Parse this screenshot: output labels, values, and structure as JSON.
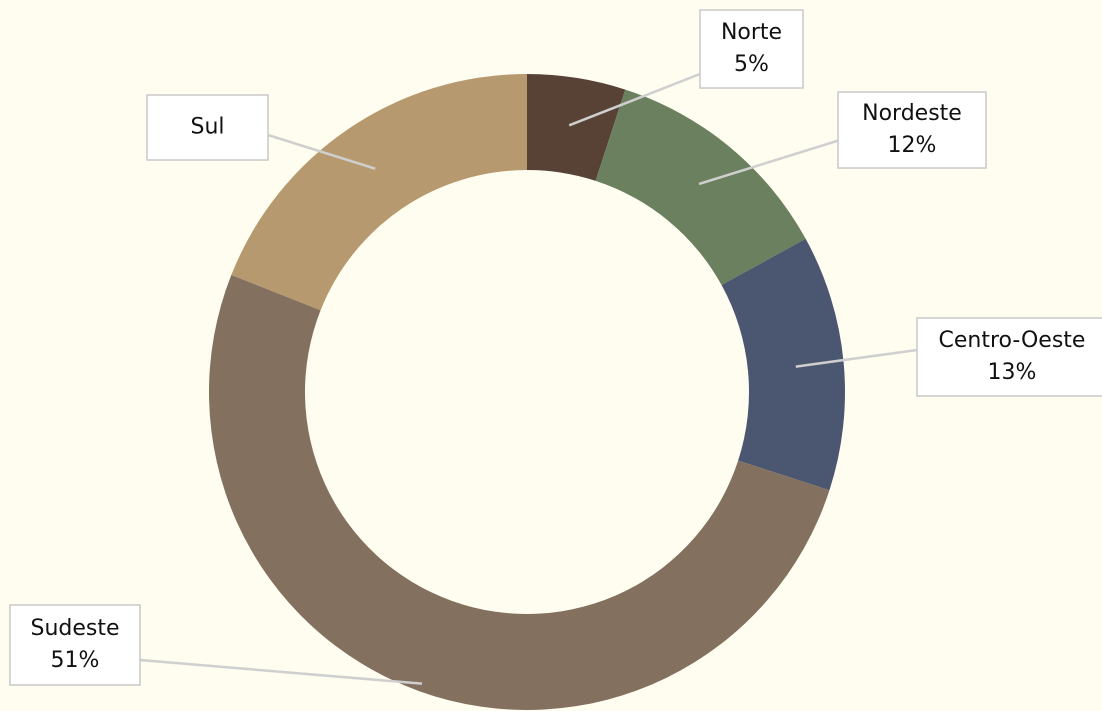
{
  "chart_data": {
    "type": "donut",
    "categories": [
      "Norte",
      "Nordeste",
      "Centro-Oeste",
      "Sudeste",
      "Sul"
    ],
    "values": [
      5,
      12,
      13,
      51,
      19
    ],
    "value_labels": [
      "5%",
      "12%",
      "13%",
      "51%",
      null
    ],
    "colors": [
      "#584236",
      "#6b805f",
      "#4b5770",
      "#84705f",
      "#b7996f"
    ]
  }
}
